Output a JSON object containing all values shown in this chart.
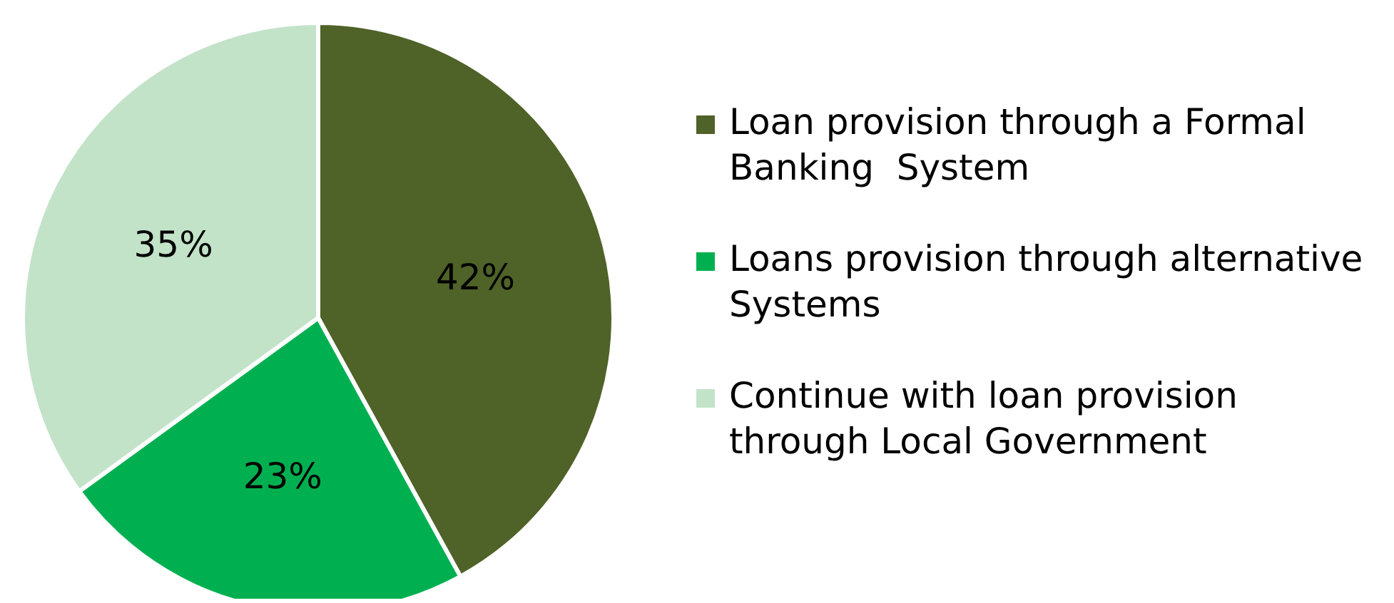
{
  "chart_data": {
    "type": "pie",
    "categories": [
      "Loan provision through a Formal Banking  System",
      "Loans provision through alternative Systems",
      "Continue with loan provision through Local Government"
    ],
    "values": [
      42,
      23,
      35
    ],
    "colors": [
      "#4f6228",
      "#00b050",
      "#c3e3c9"
    ],
    "value_labels": [
      "42%",
      "23%",
      "35%"
    ],
    "legend": "right"
  }
}
